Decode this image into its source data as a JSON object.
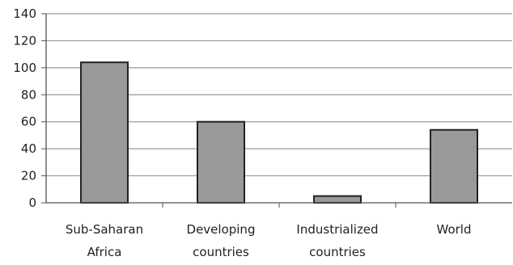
{
  "chart_data": {
    "type": "bar",
    "categories": [
      [
        "Sub-Saharan",
        "Africa"
      ],
      [
        "Developing",
        "countries"
      ],
      [
        "Industrialized",
        "countries"
      ],
      [
        "World"
      ]
    ],
    "values": [
      104,
      60,
      5,
      54
    ],
    "ylim": [
      0,
      140
    ],
    "yticks": [
      "0",
      "20",
      "40",
      "60",
      "80",
      "100",
      "120",
      "140"
    ],
    "grid": true,
    "bar_color": "#999999",
    "bar_stroke": "#222222",
    "grid_color": "#9a9a9a"
  }
}
